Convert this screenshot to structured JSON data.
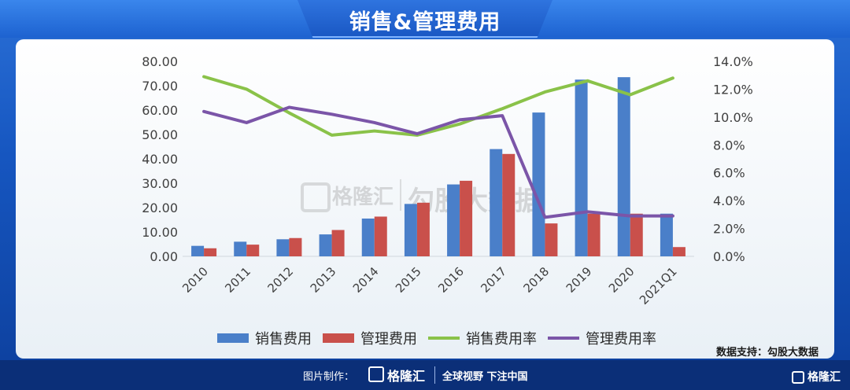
{
  "page": {
    "title": "销售&管理费用",
    "source": "数据支持：勾股大数据"
  },
  "watermark": {
    "logo": "格隆汇",
    "text": "勾股大数据"
  },
  "footer": {
    "made_by": "图片制作：",
    "logo": "格隆汇",
    "slogan": "全球视野 下注中国",
    "brand_logo": "格隆汇"
  },
  "chart_data": {
    "type": "bar",
    "categories": [
      "2010",
      "2011",
      "2012",
      "2013",
      "2014",
      "2015",
      "2016",
      "2017",
      "2018",
      "2019",
      "2020",
      "2021Q1"
    ],
    "y_left": {
      "ylim": [
        0,
        80
      ],
      "ticks": [
        "0.00",
        "10.00",
        "20.00",
        "30.00",
        "40.00",
        "50.00",
        "60.00",
        "70.00",
        "80.00"
      ]
    },
    "y_right": {
      "ylim": [
        0,
        14
      ],
      "ticks": [
        "0.0%",
        "2.0%",
        "4.0%",
        "6.0%",
        "8.0%",
        "10.0%",
        "12.0%",
        "14.0%"
      ]
    },
    "grid": false,
    "legend_position": "bottom",
    "series": [
      {
        "name": "销售费用",
        "type": "bar",
        "axis": "left",
        "color": "#4a7fc9",
        "values": [
          4.3,
          6.0,
          7.0,
          9.0,
          15.5,
          21.5,
          29.5,
          44.0,
          59.0,
          72.5,
          73.5,
          17.5
        ]
      },
      {
        "name": "管理费用",
        "type": "bar",
        "axis": "left",
        "color": "#c9504b",
        "values": [
          3.3,
          4.8,
          7.5,
          10.8,
          16.3,
          22.0,
          31.0,
          42.0,
          13.5,
          17.5,
          17.5,
          3.8
        ]
      },
      {
        "name": "销售费用率",
        "type": "line",
        "axis": "right",
        "color": "#8ac249",
        "values": [
          12.9,
          12.0,
          10.3,
          8.7,
          9.0,
          8.7,
          9.5,
          10.6,
          11.8,
          12.6,
          11.6,
          12.8
        ]
      },
      {
        "name": "管理费用率",
        "type": "line",
        "axis": "right",
        "color": "#7b55a8",
        "values": [
          10.4,
          9.6,
          10.7,
          10.2,
          9.6,
          8.8,
          9.8,
          10.1,
          2.8,
          3.2,
          2.9,
          2.9
        ]
      }
    ]
  }
}
